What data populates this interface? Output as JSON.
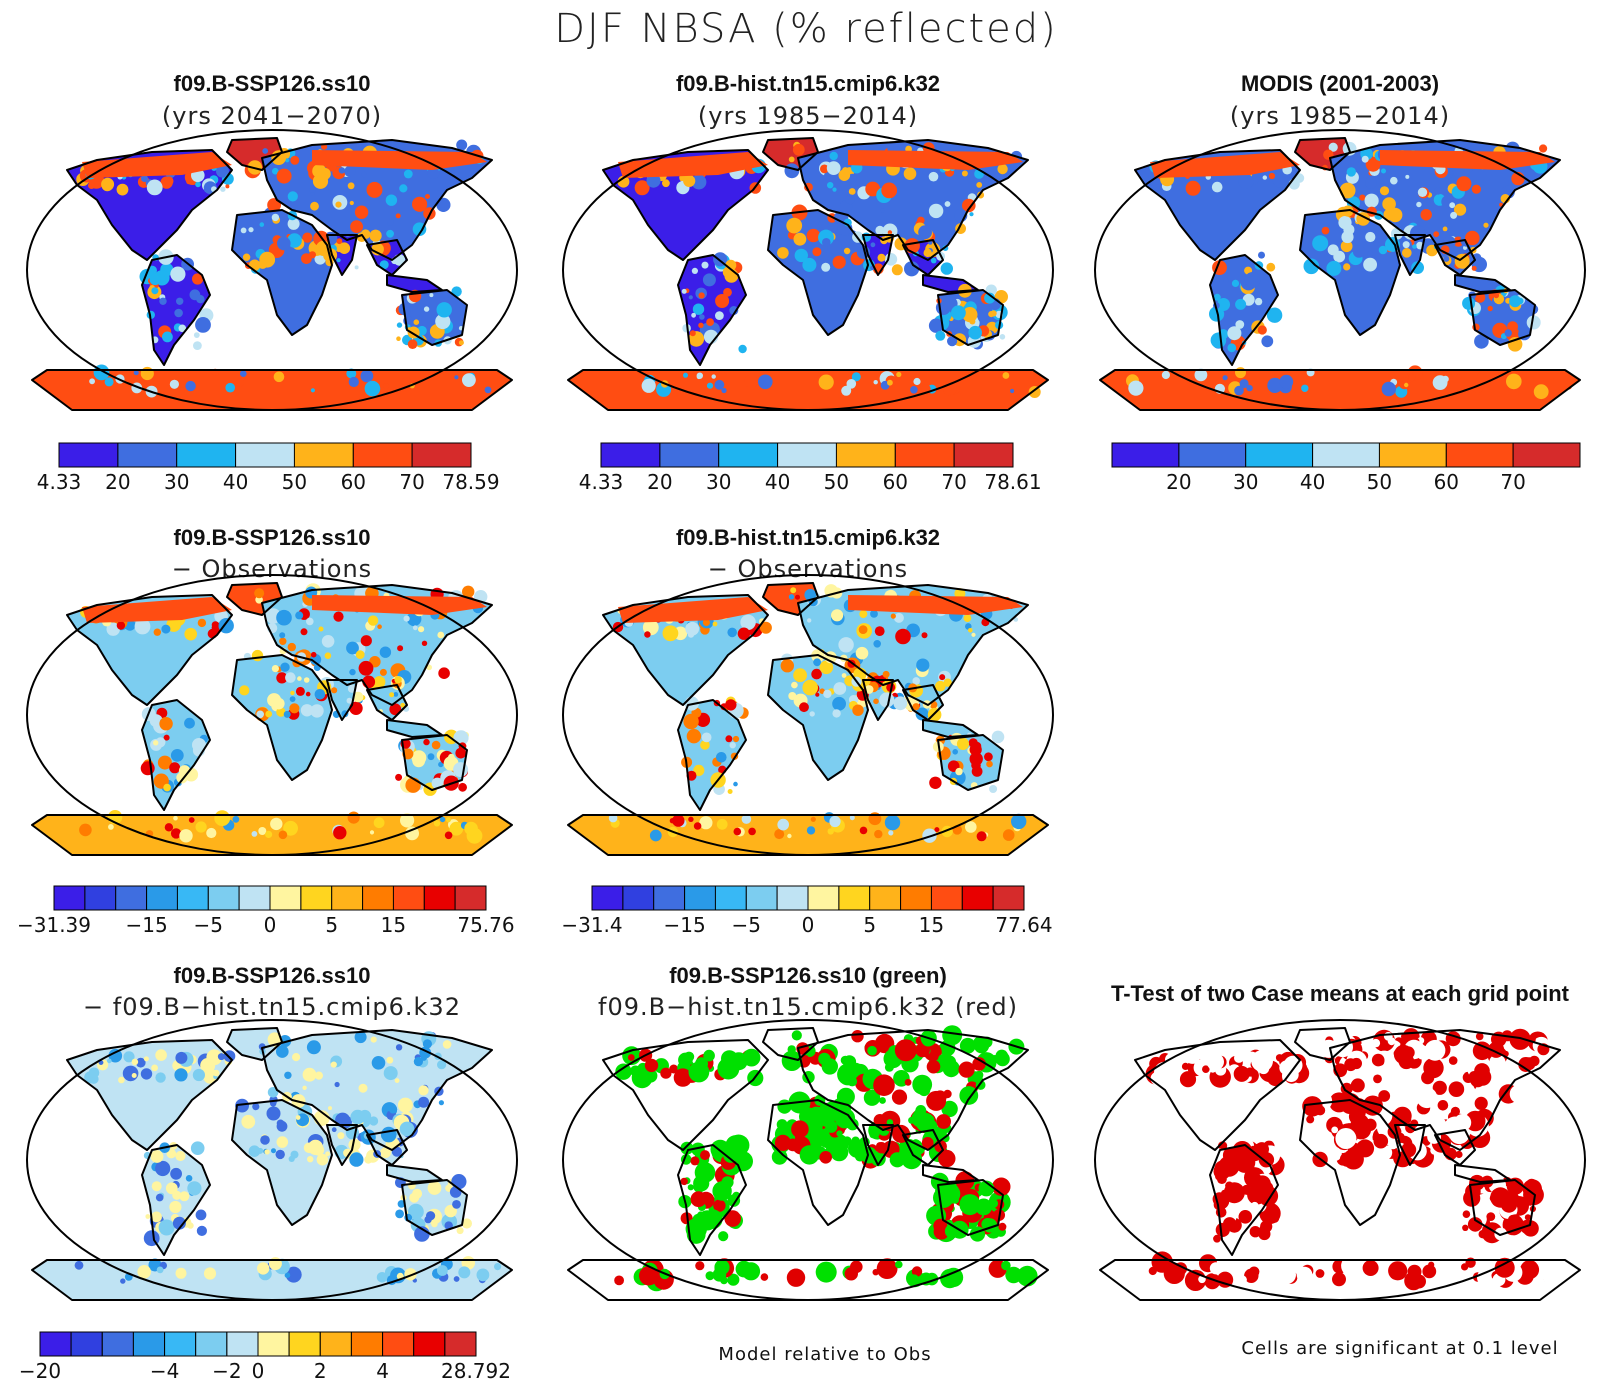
{
  "title": "DJF NBSA (% reflected)",
  "colors": {
    "abs": [
      "#3b1ee8",
      "#3f6ee0",
      "#1fb4f0",
      "#bfe3f3",
      "#ffb31a",
      "#ff4d12",
      "#d62b2b"
    ],
    "diff": [
      "#3b1ee8",
      "#3040e0",
      "#3f6ee0",
      "#2a9ae8",
      "#38b8f5",
      "#7ccdf0",
      "#bfe3f3",
      "#fff5a0",
      "#ffd51f",
      "#ffb31a",
      "#ff7c00",
      "#ff4d12",
      "#e80000",
      "#d62b2b"
    ],
    "diff3": [
      "#3b1ee8",
      "#3040e0",
      "#3f6ee0",
      "#2a9ae8",
      "#38b8f5",
      "#7ccdf0",
      "#bfe3f3",
      "#fff5a0",
      "#ffd51f",
      "#ffb31a",
      "#ff7c00",
      "#ff4d12",
      "#e80000",
      "#d62b2b"
    ]
  },
  "panels": [
    {
      "id": "p1",
      "line1": "f09.B-SSP126.ss10",
      "line2": "(yrs 2041−2070)",
      "scheme": "abs",
      "ticks": [
        "4.33",
        "20",
        "30",
        "40",
        "50",
        "60",
        "70",
        "78.59"
      ]
    },
    {
      "id": "p2",
      "line1": "f09.B-hist.tn15.cmip6.k32",
      "line2": "(yrs 1985−2014)",
      "scheme": "abs",
      "ticks": [
        "4.33",
        "20",
        "30",
        "40",
        "50",
        "60",
        "70",
        "78.61"
      ]
    },
    {
      "id": "p3",
      "line1": "MODIS (2001-2003)",
      "line2": "(yrs 1985−2014)",
      "scheme": "abs",
      "ticks": [
        "20",
        "30",
        "40",
        "50",
        "60",
        "70"
      ]
    },
    {
      "id": "p4",
      "line1": "f09.B-SSP126.ss10",
      "line2": "− Observations",
      "scheme": "diff",
      "ticks": [
        "−31.39",
        "−15",
        "−5",
        "0",
        "5",
        "15",
        "75.76"
      ]
    },
    {
      "id": "p5",
      "line1": "f09.B-hist.tn15.cmip6.k32",
      "line2": "− Observations",
      "scheme": "diff",
      "ticks": [
        "−31.4",
        "−15",
        "−5",
        "0",
        "5",
        "15",
        "77.64"
      ]
    },
    {
      "id": "p6",
      "line1": "f09.B-SSP126.ss10",
      "line2": "− f09.B−hist.tn15.cmip6.k32",
      "scheme": "diff3",
      "ticks": [
        "−20",
        "−4",
        "−2",
        "0",
        "2",
        "4",
        "28.792"
      ]
    },
    {
      "id": "p7",
      "line1": "f09.B-SSP126.ss10 (green)",
      "line2": "f09.B−hist.tn15.cmip6.k32 (red)",
      "scheme": "sig2",
      "note": "Model relative to Obs"
    },
    {
      "id": "p8",
      "line1": "T-Test of two Case means at each grid point",
      "line2": "",
      "scheme": "sig1",
      "note": "Cells are significant at 0.1 level"
    }
  ]
}
